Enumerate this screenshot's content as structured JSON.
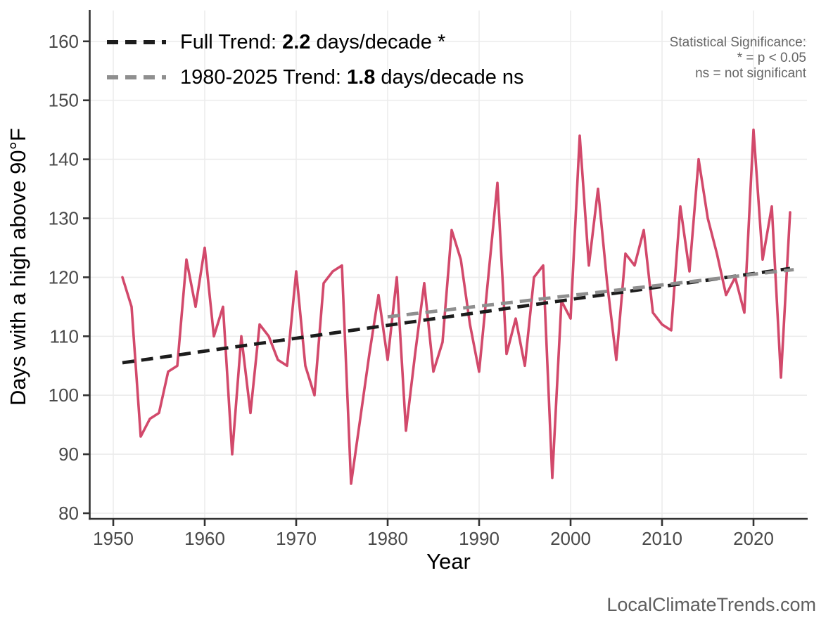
{
  "chart_data": {
    "type": "line",
    "title": "",
    "xlabel": "Year",
    "ylabel": "Days with a high above 90°F",
    "x_ticks": [
      1950,
      1960,
      1970,
      1980,
      1990,
      2000,
      2010,
      2020
    ],
    "y_ticks": [
      80,
      90,
      100,
      110,
      120,
      130,
      140,
      150,
      160
    ],
    "xlim": [
      1947.4,
      2025.8
    ],
    "ylim": [
      78.8,
      165.2
    ],
    "grid": "major horizontal and vertical, light gray, on white background",
    "legend_position": "top-left inside plot",
    "series": [
      {
        "name": "days-above-90F-annual",
        "color": "#d2496b",
        "years": [
          1951,
          1952,
          1953,
          1954,
          1955,
          1956,
          1957,
          1958,
          1959,
          1960,
          1961,
          1962,
          1963,
          1964,
          1965,
          1966,
          1967,
          1968,
          1969,
          1970,
          1971,
          1972,
          1973,
          1974,
          1975,
          1976,
          1977,
          1978,
          1979,
          1980,
          1981,
          1982,
          1983,
          1984,
          1985,
          1986,
          1987,
          1988,
          1989,
          1990,
          1991,
          1992,
          1993,
          1994,
          1995,
          1996,
          1997,
          1998,
          1999,
          2000,
          2001,
          2002,
          2003,
          2004,
          2005,
          2006,
          2007,
          2008,
          2009,
          2010,
          2011,
          2012,
          2013,
          2014,
          2015,
          2016,
          2017,
          2018,
          2019,
          2020,
          2021,
          2022,
          2023,
          2024
        ],
        "values": [
          120,
          115,
          93,
          96,
          97,
          104,
          105,
          123,
          115,
          125,
          110,
          115,
          90,
          110,
          97,
          112,
          110,
          106,
          105,
          121,
          105,
          100,
          119,
          121,
          122,
          85,
          96,
          107,
          117,
          106,
          120,
          94,
          107,
          119,
          104,
          109,
          128,
          123,
          112,
          104,
          120,
          136,
          107,
          113,
          105,
          120,
          122,
          86,
          116,
          113,
          144,
          122,
          135,
          119,
          106,
          124,
          122,
          128,
          114,
          112,
          111,
          132,
          121,
          140,
          130,
          124,
          117,
          120,
          114,
          145,
          123,
          132,
          103,
          131
        ]
      }
    ],
    "trend_lines": [
      {
        "name": "full-trend",
        "color": "#1c1c1c",
        "dashed": true,
        "x1": 1951,
        "y1": 105.5,
        "x2": 2024,
        "y2": 121.5,
        "slope_days_per_decade": 2.2,
        "label": {
          "prefix": "Full Trend: ",
          "value": "2.2",
          "suffix": " days/decade *"
        }
      },
      {
        "name": "trend-1980-2025",
        "color": "#8f8f8f",
        "dashed": true,
        "x1": 1980,
        "y1": 113.3,
        "x2": 2024.4,
        "y2": 121.3,
        "slope_days_per_decade": 1.8,
        "label": {
          "prefix": "1980-2025 Trend: ",
          "value": "1.8",
          "suffix": " days/decade ns"
        }
      }
    ],
    "annotation": {
      "lines": [
        "Statistical Significance:",
        "* = p < 0.05",
        "ns = not significant"
      ]
    },
    "watermark": "LocalClimateTrends.com"
  }
}
